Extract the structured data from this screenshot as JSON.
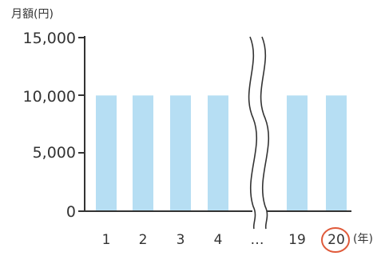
{
  "chart_data": {
    "type": "bar",
    "ylabel": "月額(円)",
    "xlabel": "(年)",
    "categories": [
      "1",
      "2",
      "3",
      "4",
      "…",
      "19",
      "20"
    ],
    "values": [
      10000,
      10000,
      10000,
      10000,
      null,
      10000,
      10000
    ],
    "yticks": [
      "0",
      "5,000",
      "10,000",
      "15,000"
    ],
    "ylim": [
      0,
      15000
    ],
    "axis_break_after_category": "…",
    "highlighted_category": "20",
    "bar_color": "#b6def3",
    "highlight_color": "#e05a3a",
    "grid": false
  }
}
